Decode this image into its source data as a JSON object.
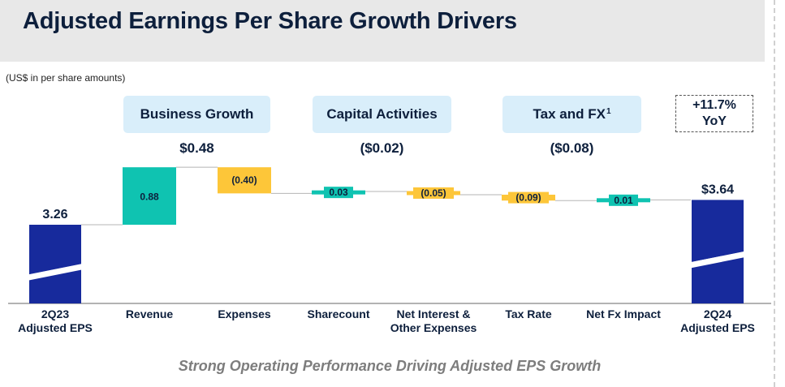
{
  "header": {
    "title": "Adjusted Earnings Per Share Growth Drivers",
    "units_note": "(US$ in per share amounts)"
  },
  "groups": [
    {
      "label": "Business Growth",
      "total": "$0.48",
      "sup": ""
    },
    {
      "label": "Capital Activities",
      "total": "($0.02)",
      "sup": ""
    },
    {
      "label": "Tax and FX",
      "total": "($0.08)",
      "sup": "1"
    }
  ],
  "yoy": {
    "line1": "+11.7%",
    "line2": "YoY"
  },
  "footer": "Strong Operating Performance Driving Adjusted EPS Growth",
  "colors": {
    "total_bar": "#172a9c",
    "positive": "#0fc3b1",
    "negative": "#fdc639",
    "label_dark": "#0d1f3c"
  },
  "chart_data": {
    "type": "bar",
    "subtype": "waterfall",
    "title": "Adjusted Earnings Per Share Growth Drivers",
    "ylabel": "US$ per share",
    "categories": [
      "2Q23\nAdjusted EPS",
      "Revenue",
      "Expenses",
      "Sharecount",
      "Net Interest &\nOther Expenses",
      "Tax Rate",
      "Net Fx Impact",
      "2Q24\nAdjusted EPS"
    ],
    "values": [
      3.26,
      0.88,
      -0.4,
      0.03,
      -0.05,
      -0.09,
      0.01,
      3.64
    ],
    "labels": [
      "3.26",
      "0.88",
      "(0.40)",
      "0.03",
      "(0.05)",
      "(0.09)",
      "0.01",
      "$3.64"
    ],
    "kinds": [
      "total",
      "increase",
      "decrease",
      "increase",
      "decrease",
      "decrease",
      "increase",
      "total"
    ],
    "axis_break": true
  }
}
